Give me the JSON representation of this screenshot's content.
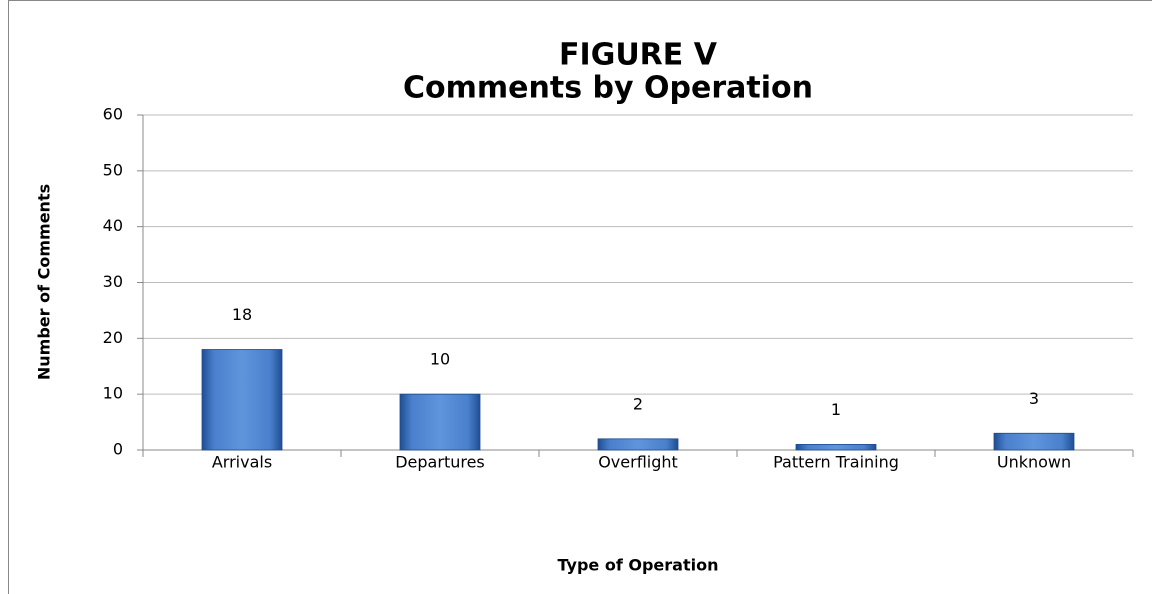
{
  "chart_data": {
    "type": "bar",
    "title": "FIGURE V",
    "subtitle": "Comments by Operation",
    "x_label": "Type of Operation",
    "y_label": "Number of Comments",
    "categories": [
      "Arrivals",
      "Departures",
      "Overflight",
      "Pattern Training",
      "Unknown"
    ],
    "values": [
      18,
      10,
      2,
      1,
      3
    ],
    "color": "#3a6fc0",
    "ylim": [
      0,
      60
    ],
    "yticks": [
      0,
      10,
      20,
      30,
      40,
      50,
      60
    ],
    "grid": true
  }
}
